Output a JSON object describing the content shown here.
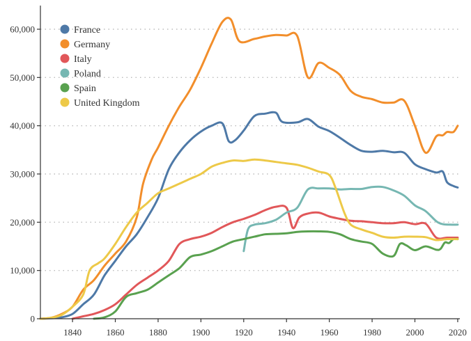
{
  "chart_data": {
    "type": "line",
    "title": "",
    "xlabel": "",
    "ylabel": "",
    "xlim": [
      1825,
      2021
    ],
    "ylim": [
      0,
      65000
    ],
    "x_ticks": [
      {
        "value": 1840,
        "label": "1840"
      },
      {
        "value": 1860,
        "label": "1860"
      },
      {
        "value": 1880,
        "label": "1880"
      },
      {
        "value": 1900,
        "label": "1900"
      },
      {
        "value": 1920,
        "label": "1920"
      },
      {
        "value": 1940,
        "label": "1940"
      },
      {
        "value": 1960,
        "label": "1960"
      },
      {
        "value": 1980,
        "label": "1980"
      },
      {
        "value": 2000,
        "label": "2000"
      },
      {
        "value": 2020,
        "label": "2020"
      }
    ],
    "y_ticks": [
      {
        "value": 0,
        "label": "0"
      },
      {
        "value": 10000,
        "label": "10,000"
      },
      {
        "value": 20000,
        "label": "20,000"
      },
      {
        "value": 30000,
        "label": "30,000"
      },
      {
        "value": 40000,
        "label": "40,000"
      },
      {
        "value": 50000,
        "label": "50,000"
      },
      {
        "value": 60000,
        "label": "60,000"
      }
    ],
    "grid": "horizontal dotted",
    "legend_position": "top-left",
    "series": [
      {
        "name": "France",
        "color": "#4e79a7",
        "points": [
          [
            1825,
            0
          ],
          [
            1830,
            100
          ],
          [
            1835,
            300
          ],
          [
            1840,
            1000
          ],
          [
            1845,
            3000
          ],
          [
            1850,
            5000
          ],
          [
            1855,
            9000
          ],
          [
            1860,
            12000
          ],
          [
            1865,
            15000
          ],
          [
            1870,
            17500
          ],
          [
            1875,
            21000
          ],
          [
            1880,
            25000
          ],
          [
            1885,
            31000
          ],
          [
            1890,
            34500
          ],
          [
            1895,
            37000
          ],
          [
            1900,
            38800
          ],
          [
            1905,
            40000
          ],
          [
            1910,
            40500
          ],
          [
            1913,
            36800
          ],
          [
            1916,
            37000
          ],
          [
            1920,
            39000
          ],
          [
            1925,
            42000
          ],
          [
            1930,
            42500
          ],
          [
            1935,
            42700
          ],
          [
            1938,
            40800
          ],
          [
            1945,
            40700
          ],
          [
            1950,
            41400
          ],
          [
            1955,
            39800
          ],
          [
            1960,
            38900
          ],
          [
            1965,
            37500
          ],
          [
            1970,
            36000
          ],
          [
            1975,
            34800
          ],
          [
            1980,
            34600
          ],
          [
            1985,
            34800
          ],
          [
            1990,
            34500
          ],
          [
            1995,
            34400
          ],
          [
            2000,
            32000
          ],
          [
            2005,
            31000
          ],
          [
            2010,
            30300
          ],
          [
            2013,
            30500
          ],
          [
            2015,
            28300
          ],
          [
            2018,
            27500
          ],
          [
            2020,
            27200
          ]
        ]
      },
      {
        "name": "Germany",
        "color": "#f28e2b",
        "points": [
          [
            1825,
            0
          ],
          [
            1830,
            200
          ],
          [
            1835,
            1000
          ],
          [
            1840,
            2500
          ],
          [
            1845,
            6000
          ],
          [
            1850,
            8000
          ],
          [
            1855,
            11000
          ],
          [
            1860,
            13500
          ],
          [
            1865,
            16000
          ],
          [
            1870,
            21000
          ],
          [
            1873,
            28000
          ],
          [
            1877,
            33000
          ],
          [
            1880,
            35500
          ],
          [
            1885,
            40000
          ],
          [
            1890,
            44000
          ],
          [
            1895,
            47500
          ],
          [
            1900,
            52000
          ],
          [
            1905,
            57000
          ],
          [
            1910,
            61500
          ],
          [
            1914,
            62000
          ],
          [
            1918,
            57500
          ],
          [
            1925,
            58000
          ],
          [
            1930,
            58500
          ],
          [
            1935,
            58800
          ],
          [
            1940,
            58700
          ],
          [
            1945,
            58600
          ],
          [
            1950,
            50000
          ],
          [
            1955,
            53000
          ],
          [
            1960,
            52000
          ],
          [
            1965,
            50500
          ],
          [
            1970,
            47200
          ],
          [
            1975,
            46000
          ],
          [
            1980,
            45500
          ],
          [
            1985,
            44800
          ],
          [
            1990,
            44800
          ],
          [
            1995,
            45200
          ],
          [
            2000,
            40000
          ],
          [
            2005,
            34400
          ],
          [
            2010,
            37800
          ],
          [
            2013,
            38000
          ],
          [
            2015,
            38700
          ],
          [
            2018,
            38700
          ],
          [
            2020,
            40000
          ]
        ]
      },
      {
        "name": "Italy",
        "color": "#e15759",
        "points": [
          [
            1840,
            0
          ],
          [
            1845,
            500
          ],
          [
            1850,
            1000
          ],
          [
            1855,
            1800
          ],
          [
            1860,
            3000
          ],
          [
            1865,
            5000
          ],
          [
            1870,
            7000
          ],
          [
            1875,
            8500
          ],
          [
            1880,
            10000
          ],
          [
            1885,
            12000
          ],
          [
            1890,
            15500
          ],
          [
            1895,
            16500
          ],
          [
            1900,
            17000
          ],
          [
            1905,
            17800
          ],
          [
            1910,
            19000
          ],
          [
            1915,
            20000
          ],
          [
            1920,
            20700
          ],
          [
            1925,
            21500
          ],
          [
            1930,
            22500
          ],
          [
            1935,
            23200
          ],
          [
            1940,
            23000
          ],
          [
            1943,
            18800
          ],
          [
            1946,
            21000
          ],
          [
            1950,
            21800
          ],
          [
            1955,
            22000
          ],
          [
            1960,
            21200
          ],
          [
            1965,
            20700
          ],
          [
            1970,
            20300
          ],
          [
            1975,
            20200
          ],
          [
            1980,
            20000
          ],
          [
            1985,
            19800
          ],
          [
            1990,
            19800
          ],
          [
            1995,
            20000
          ],
          [
            2000,
            19600
          ],
          [
            2005,
            19700
          ],
          [
            2010,
            16800
          ],
          [
            2015,
            16800
          ],
          [
            2020,
            16800
          ]
        ]
      },
      {
        "name": "Poland",
        "color": "#76b7b2",
        "points": [
          [
            1920,
            14000
          ],
          [
            1922,
            18500
          ],
          [
            1925,
            19500
          ],
          [
            1930,
            19800
          ],
          [
            1935,
            20500
          ],
          [
            1940,
            22000
          ],
          [
            1945,
            23000
          ],
          [
            1950,
            26800
          ],
          [
            1955,
            27000
          ],
          [
            1960,
            27000
          ],
          [
            1965,
            26800
          ],
          [
            1970,
            26900
          ],
          [
            1975,
            26900
          ],
          [
            1980,
            27300
          ],
          [
            1985,
            27300
          ],
          [
            1990,
            26600
          ],
          [
            1995,
            25500
          ],
          [
            2000,
            23500
          ],
          [
            2005,
            22300
          ],
          [
            2010,
            20200
          ],
          [
            2013,
            19600
          ],
          [
            2016,
            19500
          ],
          [
            2020,
            19500
          ]
        ]
      },
      {
        "name": "Spain",
        "color": "#59a14f",
        "points": [
          [
            1850,
            0
          ],
          [
            1855,
            300
          ],
          [
            1860,
            1500
          ],
          [
            1865,
            4500
          ],
          [
            1870,
            5300
          ],
          [
            1875,
            6000
          ],
          [
            1880,
            7500
          ],
          [
            1885,
            9000
          ],
          [
            1890,
            10500
          ],
          [
            1895,
            12800
          ],
          [
            1900,
            13300
          ],
          [
            1905,
            14000
          ],
          [
            1910,
            15000
          ],
          [
            1915,
            16000
          ],
          [
            1920,
            16500
          ],
          [
            1925,
            17000
          ],
          [
            1930,
            17500
          ],
          [
            1935,
            17600
          ],
          [
            1940,
            17700
          ],
          [
            1945,
            18000
          ],
          [
            1950,
            18100
          ],
          [
            1955,
            18100
          ],
          [
            1960,
            18000
          ],
          [
            1965,
            17500
          ],
          [
            1970,
            16500
          ],
          [
            1975,
            16000
          ],
          [
            1980,
            15500
          ],
          [
            1985,
            13500
          ],
          [
            1990,
            13000
          ],
          [
            1993,
            15500
          ],
          [
            1996,
            15200
          ],
          [
            2000,
            14200
          ],
          [
            2005,
            15000
          ],
          [
            2010,
            14300
          ],
          [
            2012,
            14500
          ],
          [
            2014,
            15800
          ],
          [
            2016,
            15700
          ],
          [
            2018,
            16500
          ],
          [
            2020,
            16500
          ]
        ]
      },
      {
        "name": "United Kingdom",
        "color": "#edc948",
        "points": [
          [
            1825,
            0
          ],
          [
            1830,
            200
          ],
          [
            1835,
            800
          ],
          [
            1840,
            2500
          ],
          [
            1845,
            5000
          ],
          [
            1848,
            10000
          ],
          [
            1852,
            11500
          ],
          [
            1855,
            12500
          ],
          [
            1860,
            15500
          ],
          [
            1865,
            19000
          ],
          [
            1870,
            22000
          ],
          [
            1875,
            24000
          ],
          [
            1880,
            26000
          ],
          [
            1885,
            27000
          ],
          [
            1890,
            28000
          ],
          [
            1895,
            29000
          ],
          [
            1900,
            30000
          ],
          [
            1905,
            31500
          ],
          [
            1910,
            32300
          ],
          [
            1915,
            32800
          ],
          [
            1920,
            32700
          ],
          [
            1925,
            33000
          ],
          [
            1930,
            32800
          ],
          [
            1935,
            32500
          ],
          [
            1940,
            32200
          ],
          [
            1945,
            31900
          ],
          [
            1950,
            31300
          ],
          [
            1955,
            30500
          ],
          [
            1960,
            29800
          ],
          [
            1963,
            27000
          ],
          [
            1967,
            22000
          ],
          [
            1970,
            19500
          ],
          [
            1975,
            18500
          ],
          [
            1980,
            17800
          ],
          [
            1985,
            17000
          ],
          [
            1990,
            16800
          ],
          [
            1995,
            17000
          ],
          [
            2000,
            17000
          ],
          [
            2005,
            16900
          ],
          [
            2010,
            16300
          ],
          [
            2015,
            16500
          ],
          [
            2020,
            16500
          ]
        ]
      }
    ]
  }
}
